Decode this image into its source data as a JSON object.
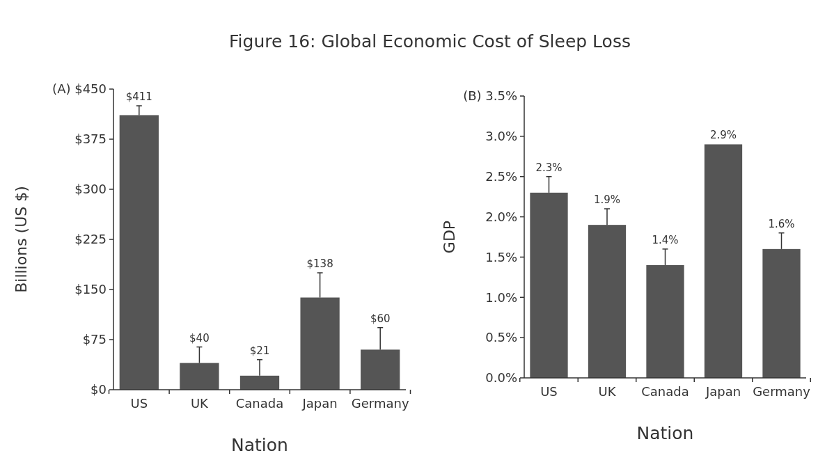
{
  "chart_data": [
    {
      "type": "bar",
      "title": "Figure 16: Global Economic Cost of Sleep Loss",
      "xlabel": "Nation",
      "ylabel": "Billions (US $)",
      "categories": [
        "US",
        "UK",
        "Canada",
        "Japan",
        "Germany"
      ],
      "values": [
        411,
        40,
        21,
        138,
        60
      ],
      "color": "#555555",
      "errors": [
        [
          411,
          425
        ],
        [
          40,
          64
        ],
        [
          21,
          45
        ],
        [
          138,
          175
        ],
        [
          60,
          93
        ]
      ],
      "value_labels": [
        "$411",
        "$40",
        "$21",
        "$138",
        "$60"
      ],
      "ylim": [
        0,
        450
      ],
      "yticks": [
        {
          "value": 0,
          "label": "$0"
        },
        {
          "value": 75,
          "label": "$75"
        },
        {
          "value": 150,
          "label": "$150"
        },
        {
          "value": 225,
          "label": "$225"
        },
        {
          "value": 300,
          "label": "$300"
        },
        {
          "value": 375,
          "label": "$375"
        },
        {
          "value": 450,
          "label": "(A) $450"
        }
      ],
      "grid": false
    },
    {
      "type": "bar",
      "xlabel": "Nation",
      "ylabel": "GDP",
      "categories": [
        "US",
        "UK",
        "Canada",
        "Japan",
        "Germany"
      ],
      "values": [
        2.3,
        1.9,
        1.4,
        2.9,
        1.6
      ],
      "color": "#555555",
      "errors": [
        [
          2.3,
          2.5
        ],
        [
          1.9,
          2.1
        ],
        [
          1.4,
          1.6
        ],
        null,
        [
          1.6,
          1.8
        ]
      ],
      "value_labels": [
        "2.3%",
        "1.9%",
        "1.4%",
        "2.9%",
        "1.6%"
      ],
      "ylim": [
        0,
        3.5
      ],
      "yticks": [
        {
          "value": 0,
          "label": "0.0%"
        },
        {
          "value": 0.5,
          "label": "0.5%"
        },
        {
          "value": 1,
          "label": "1.0%"
        },
        {
          "value": 1.5,
          "label": "1.5%"
        },
        {
          "value": 2,
          "label": "2.0%"
        },
        {
          "value": 2.5,
          "label": "2.5%"
        },
        {
          "value": 3,
          "label": "3.0%"
        },
        {
          "value": 3.5,
          "label": "(B) 3.5%"
        }
      ],
      "grid": false
    }
  ]
}
